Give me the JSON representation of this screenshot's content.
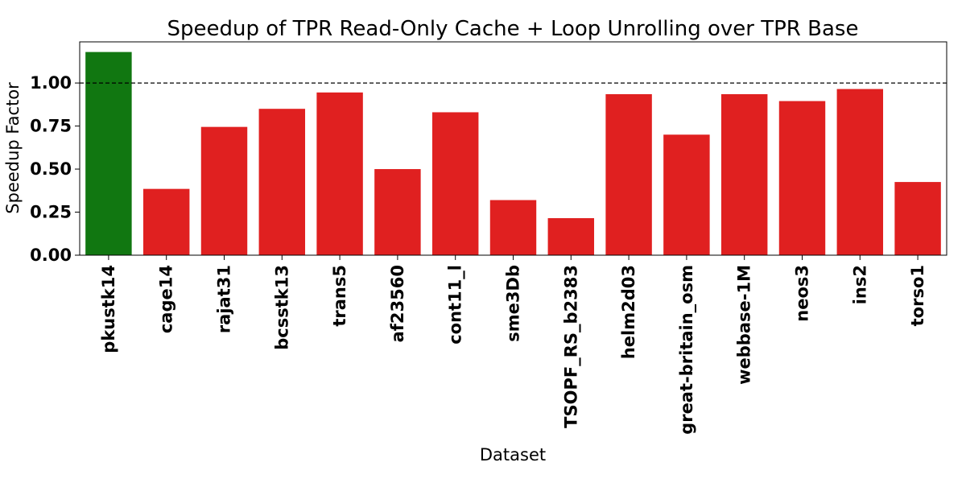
{
  "chart_data": {
    "type": "bar",
    "title": "Speedup of TPR Read-Only Cache + Loop Unrolling over TPR Base",
    "xlabel": "Dataset",
    "ylabel": "Speedup Factor",
    "categories": [
      "pkustk14",
      "cage14",
      "rajat31",
      "bcsstk13",
      "trans5",
      "af23560",
      "cont11_l",
      "sme3Db",
      "TSOPF_RS_b2383",
      "helm2d03",
      "great-britain_osm",
      "webbase-1M",
      "neos3",
      "ins2",
      "torso1"
    ],
    "values": [
      1.18,
      0.385,
      0.745,
      0.85,
      0.945,
      0.5,
      0.83,
      0.32,
      0.215,
      0.935,
      0.7,
      0.935,
      0.895,
      0.965,
      0.425
    ],
    "bar_colors": [
      "#117711",
      "#e02020",
      "#e02020",
      "#e02020",
      "#e02020",
      "#e02020",
      "#e02020",
      "#e02020",
      "#e02020",
      "#e02020",
      "#e02020",
      "#e02020",
      "#e02020",
      "#e02020",
      "#e02020"
    ],
    "y_ticks": [
      "0.00",
      "0.25",
      "0.50",
      "0.75",
      "1.00"
    ],
    "y_tick_values": [
      0,
      0.25,
      0.5,
      0.75,
      1.0
    ],
    "ylim": [
      0,
      1.2389
    ],
    "reference_line": {
      "value": 1.0,
      "style": "dashed",
      "color": "#000000"
    },
    "grid": false,
    "legend": "none"
  }
}
